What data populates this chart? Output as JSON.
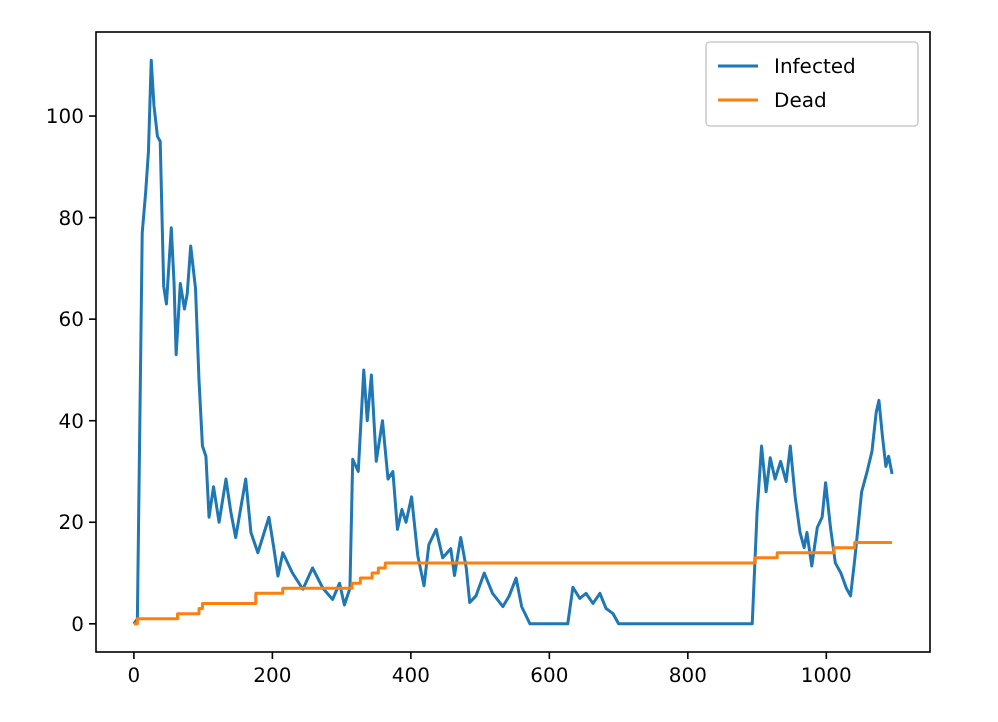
{
  "chart_data": {
    "type": "line",
    "xlim": [
      -54.75,
      1149.75
    ],
    "ylim": [
      -5.55,
      116.55
    ],
    "xticks": [
      0,
      200,
      400,
      600,
      800,
      1000
    ],
    "yticks": [
      0,
      20,
      40,
      60,
      80,
      100
    ],
    "legend": "top right",
    "grid": false,
    "series": [
      {
        "name": "Infected",
        "color": "#1f77b4",
        "x": [
          0,
          5,
          12,
          17,
          21,
          25,
          29,
          34,
          38,
          43,
          47,
          54,
          58,
          61,
          67,
          73,
          77,
          82,
          89,
          94,
          99,
          104,
          108.5,
          115,
          123,
          133,
          140,
          147,
          161.5,
          169,
          179,
          195,
          202,
          208,
          215,
          229,
          244,
          258,
          273,
          287,
          297,
          304,
          312,
          316,
          324,
          332,
          337,
          343,
          350,
          359,
          367,
          374,
          380.6,
          387,
          393,
          401,
          410,
          419,
          426,
          436.5,
          446,
          457.6,
          463,
          472,
          480,
          485,
          494,
          506,
          518,
          533,
          542,
          552,
          560,
          572,
          626.6,
          634,
          644,
          653,
          663,
          673,
          682,
          692,
          700,
          893,
          900,
          906.5,
          913,
          919,
          926,
          934,
          942,
          948,
          955,
          962,
          968,
          972,
          979,
          987,
          994,
          999,
          1006,
          1013,
          1021,
          1029,
          1035,
          1041,
          1051,
          1059,
          1066,
          1072,
          1076,
          1081,
          1086,
          1090,
          1095
        ],
        "values": [
          0,
          1,
          77,
          85,
          93,
          111,
          102,
          96,
          95,
          66.5,
          63,
          78,
          67,
          53,
          67,
          62,
          65,
          74.4,
          66,
          48,
          35,
          33,
          21,
          27,
          20,
          28.5,
          22,
          17,
          28.5,
          18,
          14,
          21,
          15,
          9.4,
          14,
          10,
          6.8,
          11,
          7,
          4.8,
          8,
          3.7,
          7,
          32.4,
          30,
          50,
          40,
          49,
          32,
          40,
          28.5,
          30,
          18.6,
          22.5,
          20,
          25,
          13.4,
          7.5,
          15.6,
          18.6,
          13,
          14.8,
          9.5,
          17,
          11,
          4.2,
          5.5,
          10,
          6,
          3.4,
          5.5,
          9,
          3.4,
          0,
          0,
          7.2,
          5,
          6,
          4,
          6,
          3,
          2,
          0,
          0,
          22,
          35,
          26,
          32.7,
          28.5,
          32,
          28,
          35,
          25,
          18,
          15,
          18,
          11.4,
          19,
          21,
          27.8,
          19,
          12,
          10,
          7,
          5.5,
          12.6,
          26,
          30,
          34,
          41.6,
          44,
          37,
          31,
          33,
          29.5
        ]
      },
      {
        "name": "Dead",
        "type": "step",
        "color": "#ff7f0e",
        "x": [
          0,
          5,
          63,
          94,
          99,
          176,
          215,
          315,
          327,
          344,
          353,
          363,
          897,
          929,
          1011,
          1041,
          1095
        ],
        "values": [
          0,
          1,
          2,
          3,
          4,
          6,
          7,
          8,
          9,
          10,
          11,
          12,
          13,
          14,
          15,
          16,
          16
        ]
      }
    ]
  }
}
